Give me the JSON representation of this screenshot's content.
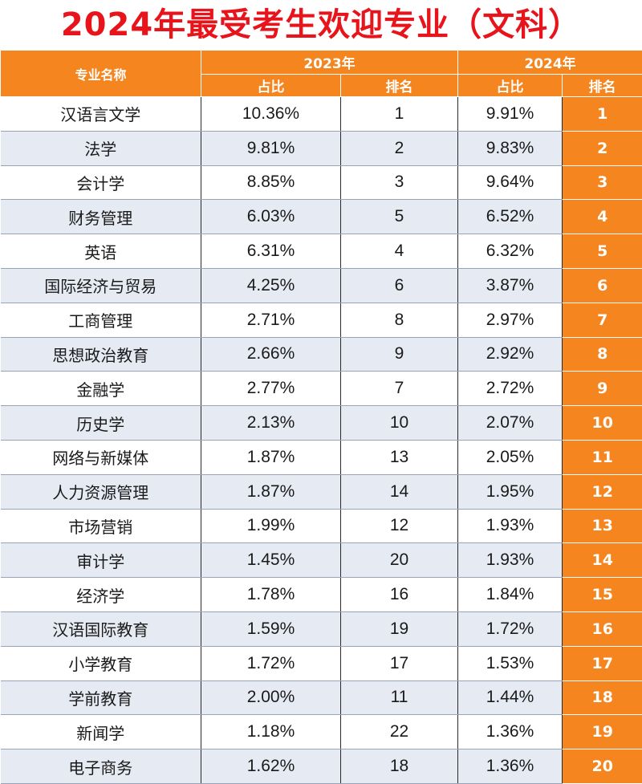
{
  "title": "2024年最受考生欢迎专业（文科）",
  "table": {
    "header": {
      "name_col": "专业名称",
      "year_2023": "2023年",
      "year_2024": "2024年",
      "share": "占比",
      "rank": "排名"
    },
    "rows": [
      {
        "name": "汉语言文学",
        "share_2023": "10.36%",
        "rank_2023": "1",
        "share_2024": "9.91%",
        "rank_2024": "1"
      },
      {
        "name": "法学",
        "share_2023": "9.81%",
        "rank_2023": "2",
        "share_2024": "9.83%",
        "rank_2024": "2"
      },
      {
        "name": "会计学",
        "share_2023": "8.85%",
        "rank_2023": "3",
        "share_2024": "9.64%",
        "rank_2024": "3"
      },
      {
        "name": "财务管理",
        "share_2023": "6.03%",
        "rank_2023": "5",
        "share_2024": "6.52%",
        "rank_2024": "4"
      },
      {
        "name": "英语",
        "share_2023": "6.31%",
        "rank_2023": "4",
        "share_2024": "6.32%",
        "rank_2024": "5"
      },
      {
        "name": "国际经济与贸易",
        "share_2023": "4.25%",
        "rank_2023": "6",
        "share_2024": "3.87%",
        "rank_2024": "6"
      },
      {
        "name": "工商管理",
        "share_2023": "2.71%",
        "rank_2023": "8",
        "share_2024": "2.97%",
        "rank_2024": "7"
      },
      {
        "name": "思想政治教育",
        "share_2023": "2.66%",
        "rank_2023": "9",
        "share_2024": "2.92%",
        "rank_2024": "8"
      },
      {
        "name": "金融学",
        "share_2023": "2.77%",
        "rank_2023": "7",
        "share_2024": "2.72%",
        "rank_2024": "9"
      },
      {
        "name": "历史学",
        "share_2023": "2.13%",
        "rank_2023": "10",
        "share_2024": "2.07%",
        "rank_2024": "10"
      },
      {
        "name": "网络与新媒体",
        "share_2023": "1.87%",
        "rank_2023": "13",
        "share_2024": "2.05%",
        "rank_2024": "11"
      },
      {
        "name": "人力资源管理",
        "share_2023": "1.87%",
        "rank_2023": "14",
        "share_2024": "1.95%",
        "rank_2024": "12"
      },
      {
        "name": "市场营销",
        "share_2023": "1.99%",
        "rank_2023": "12",
        "share_2024": "1.93%",
        "rank_2024": "13"
      },
      {
        "name": "审计学",
        "share_2023": "1.45%",
        "rank_2023": "20",
        "share_2024": "1.93%",
        "rank_2024": "14"
      },
      {
        "name": "经济学",
        "share_2023": "1.78%",
        "rank_2023": "16",
        "share_2024": "1.84%",
        "rank_2024": "15"
      },
      {
        "name": "汉语国际教育",
        "share_2023": "1.59%",
        "rank_2023": "19",
        "share_2024": "1.72%",
        "rank_2024": "16"
      },
      {
        "name": "小学教育",
        "share_2023": "1.72%",
        "rank_2023": "17",
        "share_2024": "1.53%",
        "rank_2024": "17"
      },
      {
        "name": "学前教育",
        "share_2023": "2.00%",
        "rank_2023": "11",
        "share_2024": "1.44%",
        "rank_2024": "18"
      },
      {
        "name": "新闻学",
        "share_2023": "1.18%",
        "rank_2023": "22",
        "share_2024": "1.36%",
        "rank_2024": "19"
      },
      {
        "name": "电子商务",
        "share_2023": "1.62%",
        "rank_2023": "18",
        "share_2024": "1.36%",
        "rank_2024": "20"
      }
    ]
  },
  "colors": {
    "title": "#e8141b",
    "header_bg": "#f5851f",
    "stripe_bg": "#e6eaf3"
  }
}
